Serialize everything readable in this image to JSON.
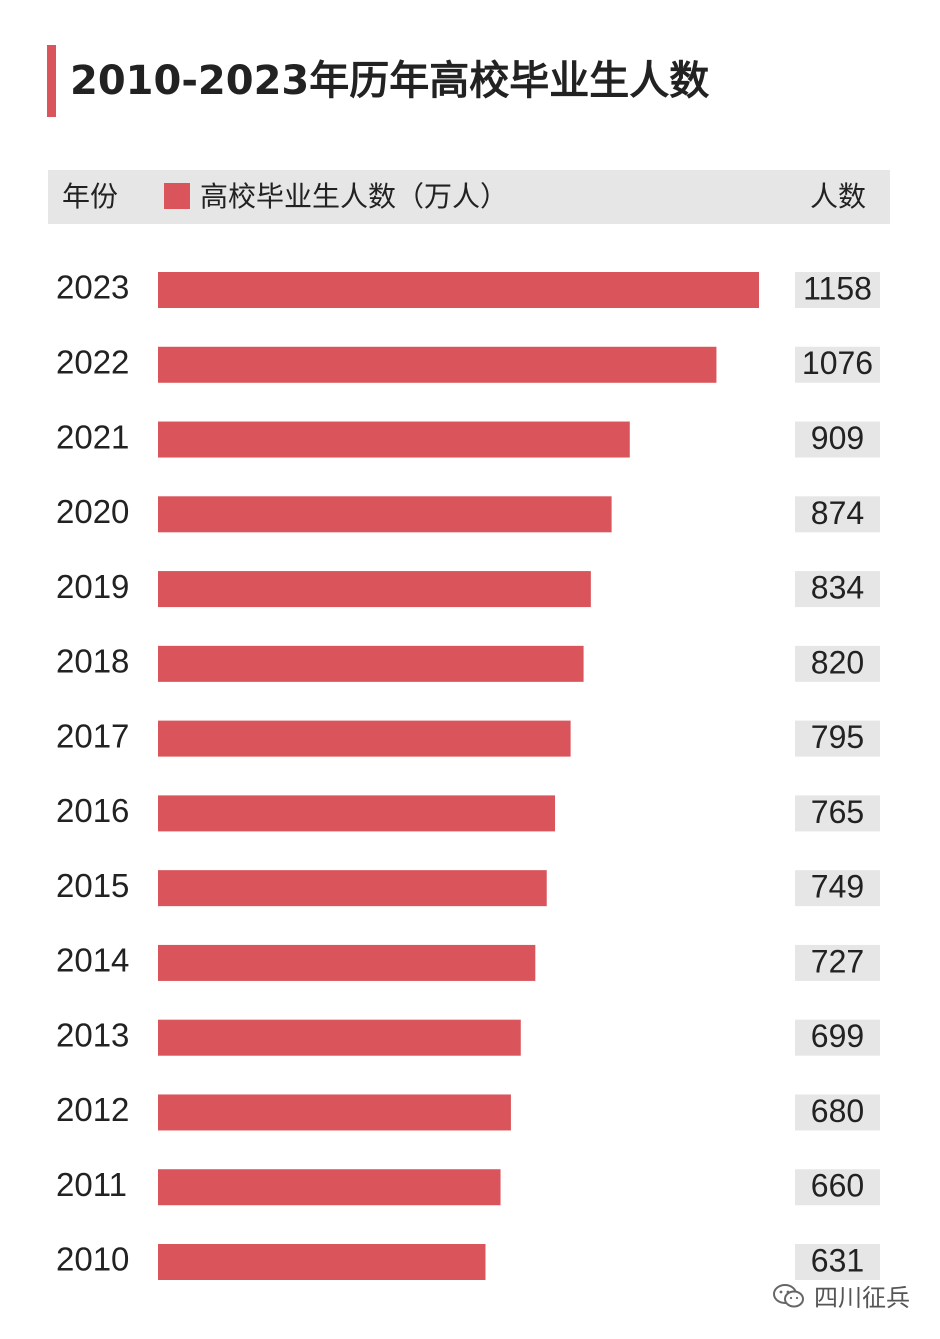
{
  "colors": {
    "accent": "#d9545b",
    "header_band": "#e6e6e6",
    "value_box": "#e6e6e6",
    "text": "#222222"
  },
  "header": {
    "title": "2010-2023年历年高校毕业生人数",
    "col_year": "年份",
    "legend_label": "高校毕业生人数（万人）",
    "col_count": "人数"
  },
  "watermark": {
    "text": "四川征兵",
    "icon": "wechat-icon"
  },
  "chart_data": {
    "type": "bar",
    "orientation": "horizontal",
    "title": "2010-2023年历年高校毕业生人数",
    "categories": [
      "2023",
      "2022",
      "2021",
      "2020",
      "2019",
      "2018",
      "2017",
      "2016",
      "2015",
      "2014",
      "2013",
      "2012",
      "2011",
      "2010"
    ],
    "series": [
      {
        "name": "高校毕业生人数（万人）",
        "values": [
          1158,
          1076,
          909,
          874,
          834,
          820,
          795,
          765,
          749,
          727,
          699,
          680,
          660,
          631
        ]
      }
    ],
    "data_labels": [
      "1158",
      "1076",
      "909",
      "874",
      "834",
      "820",
      "795",
      "765",
      "749",
      "727",
      "699",
      "680",
      "660",
      "631"
    ],
    "legend": "top-left",
    "grid": false,
    "xlim": [
      0,
      1158
    ]
  }
}
